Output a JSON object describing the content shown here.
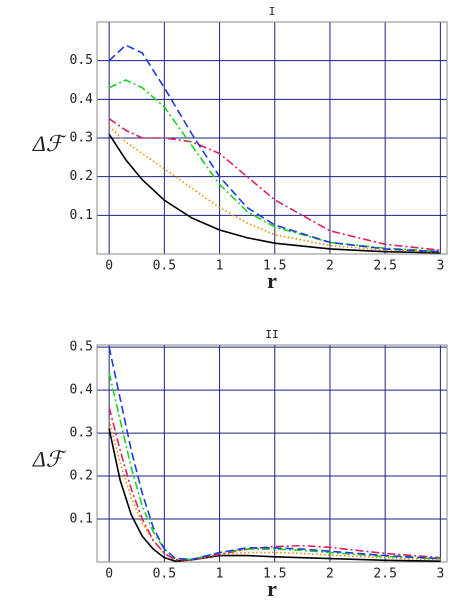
{
  "chart_data": [
    {
      "type": "line",
      "title": "I",
      "x_label": "r",
      "y_label": "Δℱ",
      "grid": true,
      "x": [
        0,
        0.15,
        0.3,
        0.5,
        0.75,
        1,
        1.25,
        1.5,
        2,
        2.5,
        3
      ],
      "xlim": [
        -0.11,
        3.06
      ],
      "ylim": [
        0,
        0.6
      ],
      "xticks": [
        0,
        0.5,
        1,
        1.5,
        2,
        2.5,
        3
      ],
      "yticks": [
        0.1,
        0.2,
        0.3,
        0.4,
        0.5
      ],
      "series": [
        {
          "color": "#000000",
          "style": "solid",
          "values": [
            0.31,
            0.244,
            0.192,
            0.139,
            0.093,
            0.062,
            0.042,
            0.028,
            0.013,
            0.006,
            0.003
          ]
        },
        {
          "color": "#f08c00",
          "style": "dotted",
          "values": [
            0.33,
            0.29,
            0.26,
            0.22,
            0.17,
            0.12,
            0.08,
            0.05,
            0.022,
            0.01,
            0.005
          ]
        },
        {
          "color": "#e0205a",
          "style": "dashdot",
          "values": [
            0.35,
            0.32,
            0.3,
            0.3,
            0.29,
            0.26,
            0.2,
            0.14,
            0.06,
            0.025,
            0.01
          ]
        },
        {
          "color": "#20d020",
          "style": "dashdot",
          "values": [
            0.43,
            0.45,
            0.43,
            0.38,
            0.28,
            0.18,
            0.11,
            0.07,
            0.03,
            0.015,
            0.007
          ]
        },
        {
          "color": "#1e3ce0",
          "style": "dashed",
          "values": [
            0.5,
            0.54,
            0.52,
            0.43,
            0.31,
            0.2,
            0.12,
            0.075,
            0.03,
            0.013,
            0.006
          ]
        }
      ]
    },
    {
      "type": "line",
      "title": "II",
      "x_label": "r",
      "y_label": "Δℱ",
      "grid": true,
      "x": [
        0,
        0.1,
        0.2,
        0.3,
        0.4,
        0.5,
        0.6,
        0.75,
        1,
        1.25,
        1.5,
        1.75,
        2,
        2.5,
        3
      ],
      "xlim": [
        -0.11,
        3.06
      ],
      "ylim": [
        0,
        0.505
      ],
      "xticks": [
        0,
        0.5,
        1,
        1.5,
        2,
        2.5,
        3
      ],
      "yticks": [
        0.1,
        0.2,
        0.3,
        0.4,
        0.5
      ],
      "series": [
        {
          "color": "#000000",
          "style": "solid",
          "values": [
            0.31,
            0.19,
            0.11,
            0.06,
            0.03,
            0.01,
            0.002,
            0.005,
            0.015,
            0.015,
            0.012,
            0.01,
            0.008,
            0.004,
            0.002
          ]
        },
        {
          "color": "#f08c00",
          "style": "dotted",
          "values": [
            0.33,
            0.23,
            0.15,
            0.09,
            0.05,
            0.02,
            0.005,
            0.005,
            0.017,
            0.022,
            0.022,
            0.02,
            0.016,
            0.01,
            0.005
          ]
        },
        {
          "color": "#e0205a",
          "style": "dashdot",
          "values": [
            0.36,
            0.26,
            0.17,
            0.1,
            0.05,
            0.02,
            0.005,
            0.005,
            0.018,
            0.03,
            0.036,
            0.038,
            0.034,
            0.02,
            0.01
          ]
        },
        {
          "color": "#20d020",
          "style": "dashdot",
          "values": [
            0.44,
            0.33,
            0.22,
            0.13,
            0.07,
            0.03,
            0.008,
            0.006,
            0.022,
            0.03,
            0.03,
            0.027,
            0.022,
            0.013,
            0.007
          ]
        },
        {
          "color": "#1e3ce0",
          "style": "dashed",
          "values": [
            0.5,
            0.38,
            0.26,
            0.16,
            0.08,
            0.03,
            0.008,
            0.006,
            0.022,
            0.033,
            0.033,
            0.03,
            0.025,
            0.015,
            0.008
          ]
        }
      ]
    }
  ]
}
